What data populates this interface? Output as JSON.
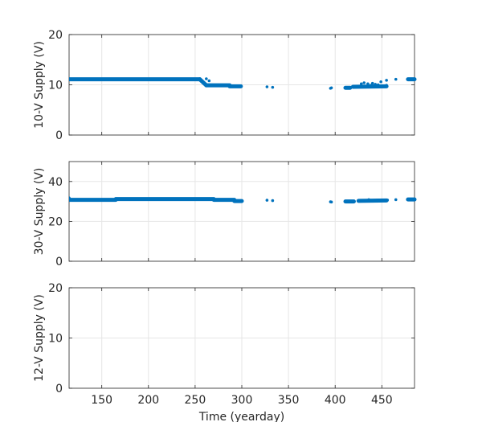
{
  "chart_data": [
    {
      "type": "scatter",
      "ylabel": "10-V Supply (V)",
      "xlabel": "",
      "xlim": [
        115,
        485
      ],
      "ylim": [
        0,
        20
      ],
      "xticks": [
        150,
        200,
        250,
        300,
        350,
        400,
        450
      ],
      "yticks": [
        0,
        10,
        20
      ],
      "xtick_labels_shown": false,
      "grid": true,
      "color": "#0072BD",
      "runs": [
        {
          "x": [
            115,
            255
          ],
          "y": [
            11.1,
            11.1
          ]
        },
        {
          "x": [
            255,
            262
          ],
          "y": [
            11.1,
            9.9
          ]
        },
        {
          "x": [
            262,
            287
          ],
          "y": [
            9.9,
            9.9
          ]
        },
        {
          "x": [
            287,
            299
          ],
          "y": [
            9.7,
            9.7
          ]
        },
        {
          "x": [
            411,
            416
          ],
          "y": [
            9.4,
            9.4
          ]
        },
        {
          "x": [
            419,
            455
          ],
          "y": [
            9.6,
            9.7
          ]
        },
        {
          "x": [
            478,
            485
          ],
          "y": [
            11.1,
            11.1
          ]
        }
      ],
      "points": [
        {
          "x": 262,
          "y": 11.2
        },
        {
          "x": 265,
          "y": 10.8
        },
        {
          "x": 327,
          "y": 9.6
        },
        {
          "x": 333,
          "y": 9.5
        },
        {
          "x": 395,
          "y": 9.3
        },
        {
          "x": 396,
          "y": 9.4
        },
        {
          "x": 428,
          "y": 10.2
        },
        {
          "x": 431,
          "y": 10.4
        },
        {
          "x": 435,
          "y": 10.2
        },
        {
          "x": 438,
          "y": 9.9
        },
        {
          "x": 440,
          "y": 10.3
        },
        {
          "x": 443,
          "y": 10.1
        },
        {
          "x": 446,
          "y": 10.0
        },
        {
          "x": 449,
          "y": 10.6
        },
        {
          "x": 455,
          "y": 10.9
        },
        {
          "x": 455,
          "y": 9.9
        },
        {
          "x": 465,
          "y": 11.1
        }
      ]
    },
    {
      "type": "scatter",
      "ylabel": "30-V Supply (V)",
      "xlabel": "",
      "xlim": [
        115,
        485
      ],
      "ylim": [
        0,
        50
      ],
      "xticks": [
        150,
        200,
        250,
        300,
        350,
        400,
        450
      ],
      "yticks": [
        0,
        20,
        40
      ],
      "xtick_labels_shown": false,
      "grid": true,
      "color": "#0072BD",
      "runs": [
        {
          "x": [
            115,
            165
          ],
          "y": [
            30.8,
            30.8
          ]
        },
        {
          "x": [
            165,
            270
          ],
          "y": [
            31.2,
            31.2
          ]
        },
        {
          "x": [
            270,
            292
          ],
          "y": [
            30.8,
            30.8
          ]
        },
        {
          "x": [
            292,
            300
          ],
          "y": [
            30.2,
            30.2
          ]
        },
        {
          "x": [
            411,
            420
          ],
          "y": [
            30.0,
            30.0
          ]
        },
        {
          "x": [
            425,
            455
          ],
          "y": [
            30.3,
            30.5
          ]
        },
        {
          "x": [
            478,
            485
          ],
          "y": [
            31.0,
            31.0
          ]
        }
      ],
      "points": [
        {
          "x": 115,
          "y": 31.8
        },
        {
          "x": 327,
          "y": 30.6
        },
        {
          "x": 333,
          "y": 30.4
        },
        {
          "x": 395,
          "y": 29.8
        },
        {
          "x": 396,
          "y": 29.7
        },
        {
          "x": 436,
          "y": 30.9
        },
        {
          "x": 445,
          "y": 30.7
        },
        {
          "x": 456,
          "y": 30.7
        },
        {
          "x": 465,
          "y": 30.9
        }
      ]
    },
    {
      "type": "scatter",
      "ylabel": "12-V Supply (V)",
      "xlabel": "Time (yearday)",
      "xlim": [
        115,
        485
      ],
      "ylim": [
        0,
        20
      ],
      "xticks": [
        150,
        200,
        250,
        300,
        350,
        400,
        450
      ],
      "yticks": [
        0,
        10,
        20
      ],
      "xtick_labels_shown": true,
      "grid": true,
      "color": "#0072BD",
      "runs": [],
      "points": []
    }
  ]
}
